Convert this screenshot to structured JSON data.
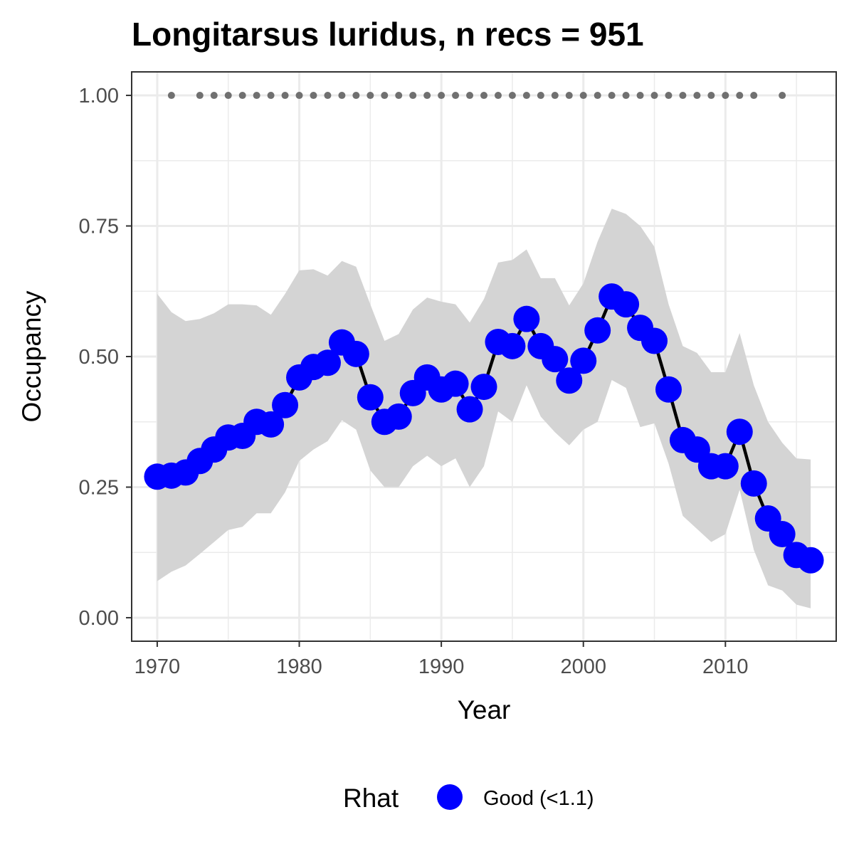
{
  "chart_data": {
    "type": "line",
    "title": "Longitarsus luridus, n recs = 951",
    "xlabel": "Year",
    "ylabel": "Occupancy",
    "xlim": [
      1968.2,
      2017.8
    ],
    "ylim": [
      -0.045,
      1.045
    ],
    "x_ticks": [
      1970,
      1980,
      1990,
      2000,
      2010
    ],
    "x_tick_labels": [
      "1970",
      "1980",
      "1990",
      "2000",
      "2010"
    ],
    "y_ticks": [
      0,
      0.25,
      0.5,
      0.75,
      1.0
    ],
    "y_tick_labels": [
      "0.00",
      "0.25",
      "0.50",
      "0.75",
      "1.00"
    ],
    "grid": true,
    "legend": {
      "title": "Rhat",
      "position": "bottom",
      "entries": [
        {
          "label": "Good (<1.1)",
          "color": "#0000ff"
        }
      ]
    },
    "colors": {
      "points": "#0000ff",
      "line": "#000000",
      "ribbon": "#d4d4d4",
      "rug": "#707070",
      "grid": "#ebebeb",
      "border": "#333333"
    },
    "years": [
      1970,
      1971,
      1972,
      1973,
      1974,
      1975,
      1976,
      1977,
      1978,
      1979,
      1980,
      1981,
      1982,
      1983,
      1984,
      1985,
      1986,
      1987,
      1988,
      1989,
      1990,
      1991,
      1992,
      1993,
      1994,
      1995,
      1996,
      1997,
      1998,
      1999,
      2000,
      2001,
      2002,
      2003,
      2004,
      2005,
      2006,
      2007,
      2008,
      2009,
      2010,
      2011,
      2012,
      2013,
      2014,
      2015,
      2016
    ],
    "occupancy": [
      0.27,
      0.272,
      0.278,
      0.3,
      0.322,
      0.345,
      0.348,
      0.375,
      0.37,
      0.407,
      0.46,
      0.48,
      0.488,
      0.527,
      0.505,
      0.422,
      0.375,
      0.385,
      0.43,
      0.46,
      0.437,
      0.448,
      0.399,
      0.442,
      0.528,
      0.52,
      0.572,
      0.52,
      0.495,
      0.454,
      0.492,
      0.55,
      0.615,
      0.6,
      0.555,
      0.53,
      0.437,
      0.34,
      0.322,
      0.29,
      0.29,
      0.356,
      0.257,
      0.19,
      0.16,
      0.12,
      0.11
    ],
    "upper_ci": [
      0.62,
      0.585,
      0.568,
      0.572,
      0.583,
      0.6,
      0.6,
      0.598,
      0.58,
      0.62,
      0.665,
      0.667,
      0.655,
      0.683,
      0.672,
      0.6,
      0.53,
      0.543,
      0.59,
      0.613,
      0.605,
      0.6,
      0.565,
      0.61,
      0.68,
      0.685,
      0.705,
      0.65,
      0.65,
      0.598,
      0.64,
      0.72,
      0.783,
      0.773,
      0.75,
      0.71,
      0.6,
      0.52,
      0.507,
      0.47,
      0.47,
      0.545,
      0.445,
      0.375,
      0.335,
      0.305,
      0.303
    ],
    "lower_ci": [
      0.07,
      0.088,
      0.1,
      0.122,
      0.145,
      0.168,
      0.174,
      0.2,
      0.2,
      0.24,
      0.3,
      0.322,
      0.338,
      0.378,
      0.36,
      0.282,
      0.25,
      0.25,
      0.29,
      0.31,
      0.29,
      0.305,
      0.25,
      0.29,
      0.395,
      0.375,
      0.445,
      0.385,
      0.355,
      0.33,
      0.36,
      0.375,
      0.455,
      0.44,
      0.365,
      0.372,
      0.295,
      0.195,
      0.17,
      0.145,
      0.16,
      0.245,
      0.13,
      0.062,
      0.052,
      0.025,
      0.018
    ],
    "record_years": [
      1971,
      1973,
      1974,
      1975,
      1976,
      1977,
      1978,
      1979,
      1980,
      1981,
      1982,
      1983,
      1984,
      1985,
      1986,
      1987,
      1988,
      1989,
      1990,
      1991,
      1992,
      1993,
      1994,
      1995,
      1996,
      1997,
      1998,
      1999,
      2000,
      2001,
      2002,
      2003,
      2004,
      2005,
      2006,
      2007,
      2008,
      2009,
      2010,
      2011,
      2012,
      2014
    ],
    "record_level": 1.0
  }
}
